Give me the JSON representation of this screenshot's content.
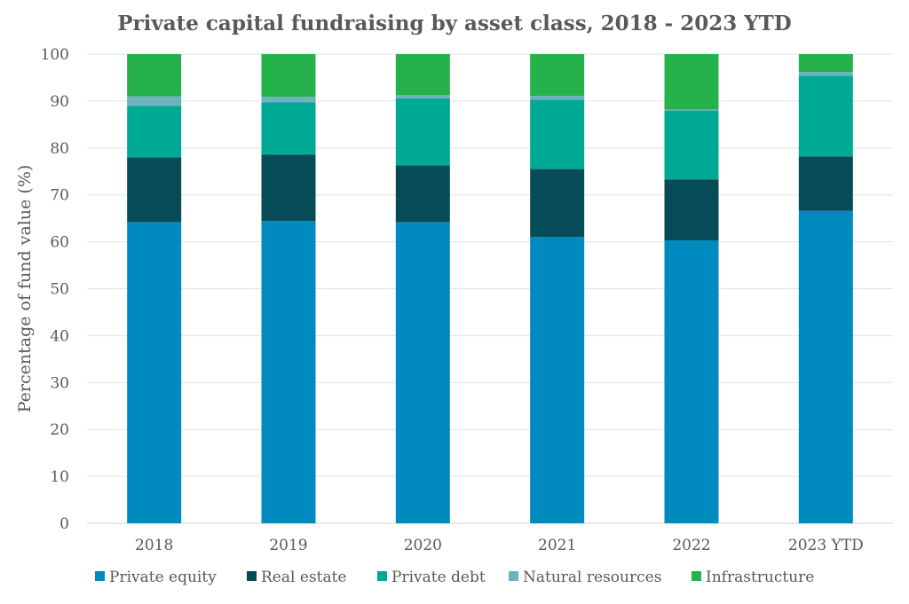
{
  "chart_data": {
    "type": "bar",
    "stacked": true,
    "title": "Private capital fundraising by asset class, 2018 - 2023 YTD",
    "xlabel": "",
    "ylabel": "Percentage of fund value (%)",
    "ylim": [
      0,
      100
    ],
    "yticks": [
      0,
      10,
      20,
      30,
      40,
      50,
      60,
      70,
      80,
      90,
      100
    ],
    "grid": true,
    "legend_position": "bottom",
    "categories": [
      "2018",
      "2019",
      "2020",
      "2021",
      "2022",
      "2023 YTD"
    ],
    "series": [
      {
        "name": "Private equity",
        "color": "#008ABF",
        "values": [
          64.2,
          64.4,
          64.2,
          61.0,
          60.3,
          66.6
        ]
      },
      {
        "name": "Real estate",
        "color": "#064C56",
        "values": [
          13.8,
          14.2,
          12.1,
          14.5,
          13.0,
          11.6
        ]
      },
      {
        "name": "Private debt",
        "color": "#00A994",
        "values": [
          11.0,
          11.1,
          14.3,
          14.8,
          14.6,
          17.2
        ]
      },
      {
        "name": "Natural resources",
        "color": "#6EB2BE",
        "values": [
          2.0,
          1.2,
          0.7,
          0.8,
          0.3,
          0.8
        ]
      },
      {
        "name": "Infrastructure",
        "color": "#25B24A",
        "values": [
          9.0,
          9.1,
          8.7,
          8.9,
          11.8,
          3.8
        ]
      }
    ]
  }
}
